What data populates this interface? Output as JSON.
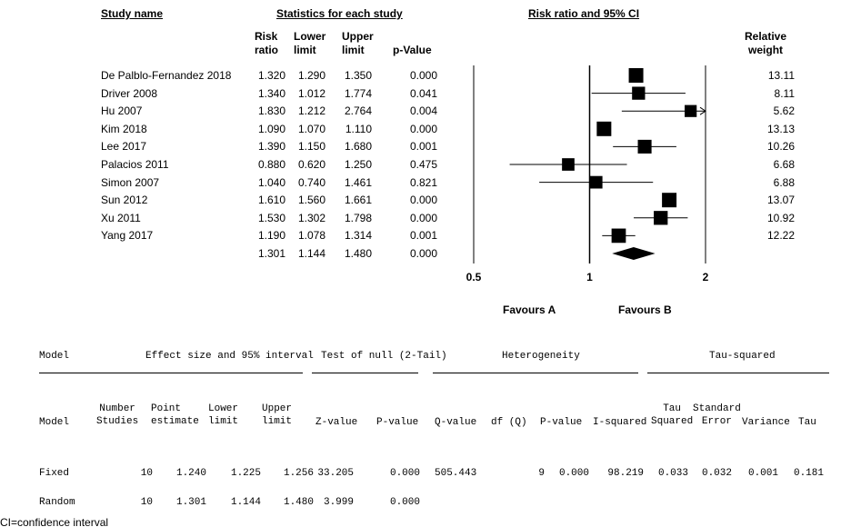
{
  "forest": {
    "headers": {
      "study_name": "Study name",
      "statistics": "Statistics for each study",
      "risk_ratio_ci": "Risk ratio and 95% CI",
      "risk_ratio": [
        "Risk",
        "ratio"
      ],
      "lower_limit": [
        "Lower",
        "limit"
      ],
      "upper_limit": [
        "Upper",
        "limit"
      ],
      "p_value": "p-Value",
      "relative_weight": [
        "Relative",
        "weight"
      ]
    },
    "favours_a": "Favours A",
    "favours_b": "Favours B"
  },
  "chart_data": {
    "type": "forest",
    "scale": "log",
    "axis_ticks": [
      0.5,
      1,
      2
    ],
    "axis_tick_labels": [
      "0.5",
      "1",
      "2"
    ],
    "reference_line": 1,
    "studies": [
      {
        "name": "De Palblo-Fernandez 2018",
        "rr": 1.32,
        "lower": 1.29,
        "upper": 1.35,
        "p": "0.000",
        "weight": "13.11",
        "rr_text": "1.320",
        "lower_text": "1.290",
        "upper_text": "1.350"
      },
      {
        "name": "Driver 2008",
        "rr": 1.34,
        "lower": 1.012,
        "upper": 1.774,
        "p": "0.041",
        "weight": "8.11",
        "rr_text": "1.340",
        "lower_text": "1.012",
        "upper_text": "1.774"
      },
      {
        "name": "Hu 2007",
        "rr": 1.83,
        "lower": 1.212,
        "upper": 2.764,
        "p": "0.004",
        "weight": "5.62",
        "rr_text": "1.830",
        "lower_text": "1.212",
        "upper_text": "2.764"
      },
      {
        "name": "Kim 2018",
        "rr": 1.09,
        "lower": 1.07,
        "upper": 1.11,
        "p": "0.000",
        "weight": "13.13",
        "rr_text": "1.090",
        "lower_text": "1.070",
        "upper_text": "1.110"
      },
      {
        "name": "Lee 2017",
        "rr": 1.39,
        "lower": 1.15,
        "upper": 1.68,
        "p": "0.001",
        "weight": "10.26",
        "rr_text": "1.390",
        "lower_text": "1.150",
        "upper_text": "1.680"
      },
      {
        "name": "Palacios 2011",
        "rr": 0.88,
        "lower": 0.62,
        "upper": 1.25,
        "p": "0.475",
        "weight": "6.68",
        "rr_text": "0.880",
        "lower_text": "0.620",
        "upper_text": "1.250"
      },
      {
        "name": "Simon 2007",
        "rr": 1.04,
        "lower": 0.74,
        "upper": 1.461,
        "p": "0.821",
        "weight": "6.88",
        "rr_text": "1.040",
        "lower_text": "0.740",
        "upper_text": "1.461"
      },
      {
        "name": "Sun 2012",
        "rr": 1.61,
        "lower": 1.56,
        "upper": 1.661,
        "p": "0.000",
        "weight": "13.07",
        "rr_text": "1.610",
        "lower_text": "1.560",
        "upper_text": "1.661"
      },
      {
        "name": "Xu 2011",
        "rr": 1.53,
        "lower": 1.302,
        "upper": 1.798,
        "p": "0.000",
        "weight": "10.92",
        "rr_text": "1.530",
        "lower_text": "1.302",
        "upper_text": "1.798"
      },
      {
        "name": "Yang 2017",
        "rr": 1.19,
        "lower": 1.078,
        "upper": 1.314,
        "p": "0.001",
        "weight": "12.22",
        "rr_text": "1.190",
        "lower_text": "1.078",
        "upper_text": "1.314"
      }
    ],
    "pooled": {
      "rr": 1.301,
      "lower": 1.144,
      "upper": 1.48,
      "p": "0.000",
      "rr_text": "1.301",
      "lower_text": "1.144",
      "upper_text": "1.480"
    }
  },
  "meta": {
    "groups": {
      "model": "Model",
      "effect": "Effect size and 95% interval",
      "null": "Test of null (2-Tail)",
      "heterogeneity": "Heterogeneity",
      "tau": "Tau-squared"
    },
    "columns": {
      "model": "Model",
      "number_studies": [
        "Number",
        "Studies"
      ],
      "point_estimate": [
        "Point",
        "estimate"
      ],
      "lower_limit": [
        "Lower",
        "limit"
      ],
      "upper_limit": [
        "Upper",
        "limit"
      ],
      "z_value": "Z-value",
      "p_value": "P-value",
      "q_value": "Q-value",
      "df_q": "df (Q)",
      "p_value_het": "P-value",
      "i_squared": "I-squared",
      "tau_squared": [
        "Tau",
        "Squared"
      ],
      "standard_error": [
        "Standard",
        "Error"
      ],
      "variance": "Variance",
      "tau": "Tau"
    },
    "rows": [
      {
        "model": "Fixed",
        "n": "10",
        "point": "1.240",
        "lower": "1.225",
        "upper": "1.256",
        "z": "33.205",
        "p": "0.000",
        "q": "505.443",
        "df": "9",
        "p_het": "0.000",
        "i2": "98.219",
        "tau2": "0.033",
        "se": "0.032",
        "var": "0.001",
        "tau": "0.181"
      },
      {
        "model": "Random",
        "n": "10",
        "point": "1.301",
        "lower": "1.144",
        "upper": "1.480",
        "z": "3.999",
        "p": "0.000"
      }
    ]
  },
  "footnote": "CI=confidence interval"
}
